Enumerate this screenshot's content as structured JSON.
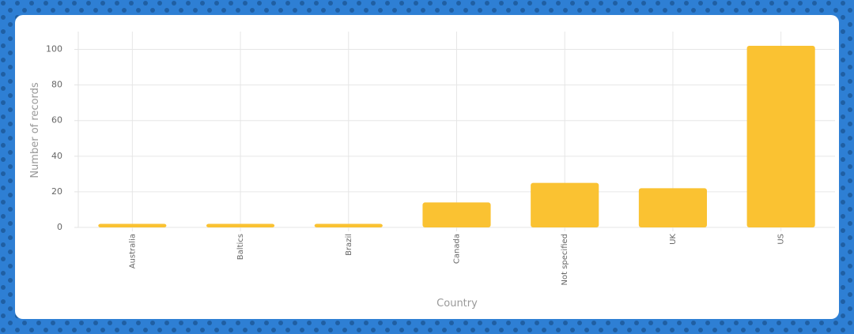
{
  "chart_data": {
    "type": "bar",
    "categories": [
      "Australia",
      "Baltics",
      "Brazil",
      "Canada",
      "Not specified",
      "UK",
      "US"
    ],
    "values": [
      2,
      2,
      2,
      14,
      25,
      22,
      102
    ],
    "color": "#fac232",
    "x_label": "Country",
    "y_label": "Number of records",
    "ylim": [
      0,
      110
    ],
    "yticks": [
      0,
      20,
      40,
      60,
      80,
      100
    ],
    "grid": true
  }
}
